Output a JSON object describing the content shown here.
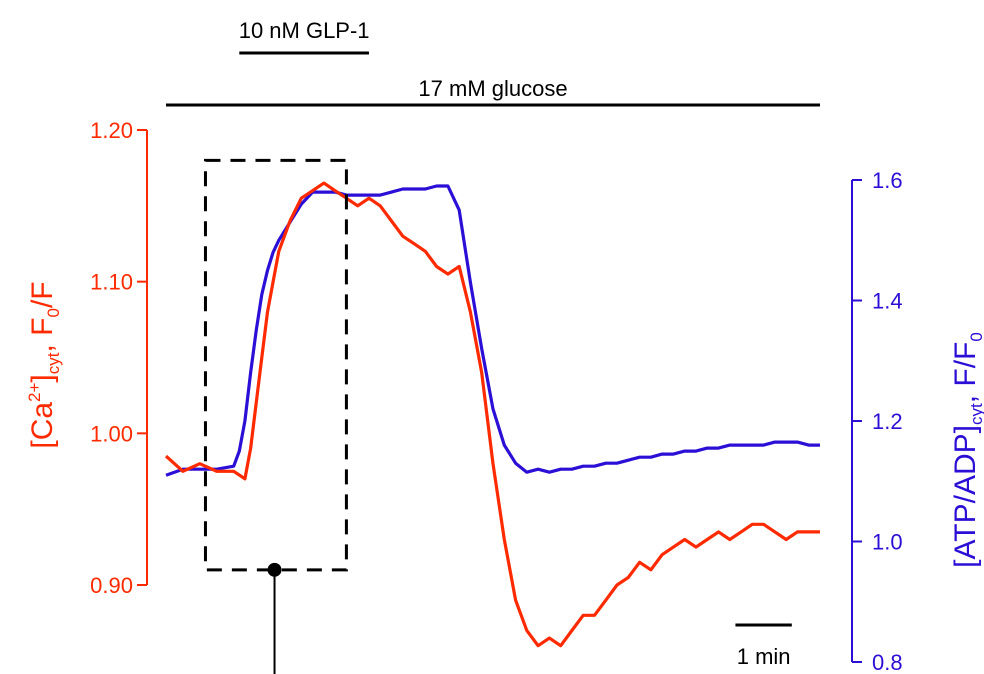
{
  "chart_data": {
    "type": "line",
    "title": "",
    "annotations": {
      "drug_label": "10 nM GLP-1",
      "glucose_label": "17 mM glucose",
      "scale_bar_label": "1 min"
    },
    "axes": {
      "left": {
        "label_parts": [
          "[Ca",
          "2+",
          "]",
          "cyt",
          ", F",
          "0",
          "/F"
        ],
        "color": "#ff2a00",
        "ylim": [
          0.9,
          1.2
        ],
        "ticks": [
          "0.90",
          "1.00",
          "1.10",
          "1.20"
        ]
      },
      "right": {
        "label_parts": [
          "[ATP/ADP]",
          "cyt",
          ", F/F",
          "0"
        ],
        "color": "#2b0fd6",
        "ylim": [
          0.8,
          1.6
        ],
        "ticks": [
          "0.8",
          "1.0",
          "1.2",
          "1.4",
          "1.6"
        ]
      }
    },
    "x_unit": "min",
    "xlim": [
      0,
      11.6
    ],
    "series": [
      {
        "axis": "left",
        "color": "#ff2a00",
        "x": [
          0,
          0.3,
          0.6,
          0.9,
          1.2,
          1.4,
          1.5,
          1.6,
          1.7,
          1.8,
          1.9,
          2.0,
          2.2,
          2.4,
          2.6,
          2.8,
          3.0,
          3.2,
          3.4,
          3.6,
          3.8,
          4.0,
          4.2,
          4.4,
          4.6,
          4.8,
          5.0,
          5.2,
          5.4,
          5.6,
          5.8,
          6.0,
          6.2,
          6.4,
          6.6,
          6.8,
          7.0,
          7.2,
          7.4,
          7.6,
          7.8,
          8.0,
          8.2,
          8.4,
          8.6,
          8.8,
          9.0,
          9.2,
          9.4,
          9.6,
          9.8,
          10.0,
          10.2,
          10.4,
          10.6,
          10.8,
          11.0,
          11.2,
          11.4,
          11.6
        ],
        "y": [
          0.985,
          0.975,
          0.98,
          0.975,
          0.975,
          0.97,
          0.99,
          1.02,
          1.05,
          1.08,
          1.1,
          1.12,
          1.14,
          1.155,
          1.16,
          1.165,
          1.16,
          1.155,
          1.15,
          1.155,
          1.15,
          1.14,
          1.13,
          1.125,
          1.12,
          1.11,
          1.105,
          1.11,
          1.08,
          1.04,
          0.98,
          0.93,
          0.89,
          0.87,
          0.86,
          0.865,
          0.86,
          0.87,
          0.88,
          0.88,
          0.89,
          0.9,
          0.905,
          0.915,
          0.91,
          0.92,
          0.925,
          0.93,
          0.925,
          0.93,
          0.935,
          0.93,
          0.935,
          0.94,
          0.94,
          0.935,
          0.93,
          0.935,
          0.935,
          0.935
        ]
      },
      {
        "axis": "right",
        "color": "#2b0fd6",
        "x": [
          0,
          0.3,
          0.6,
          0.9,
          1.2,
          1.3,
          1.4,
          1.5,
          1.6,
          1.7,
          1.8,
          1.9,
          2.0,
          2.2,
          2.4,
          2.6,
          2.8,
          3.0,
          3.2,
          3.4,
          3.6,
          3.8,
          4.0,
          4.2,
          4.4,
          4.6,
          4.8,
          5.0,
          5.2,
          5.4,
          5.6,
          5.8,
          6.0,
          6.2,
          6.4,
          6.6,
          6.8,
          7.0,
          7.2,
          7.4,
          7.6,
          7.8,
          8.0,
          8.2,
          8.4,
          8.6,
          8.8,
          9.0,
          9.2,
          9.4,
          9.6,
          9.8,
          10.0,
          10.2,
          10.4,
          10.6,
          10.8,
          11.0,
          11.2,
          11.4,
          11.6
        ],
        "y": [
          1.11,
          1.12,
          1.12,
          1.12,
          1.125,
          1.15,
          1.2,
          1.28,
          1.35,
          1.41,
          1.45,
          1.48,
          1.5,
          1.53,
          1.56,
          1.58,
          1.58,
          1.58,
          1.575,
          1.575,
          1.575,
          1.575,
          1.58,
          1.585,
          1.585,
          1.585,
          1.59,
          1.59,
          1.55,
          1.43,
          1.32,
          1.22,
          1.16,
          1.13,
          1.115,
          1.12,
          1.115,
          1.12,
          1.12,
          1.125,
          1.125,
          1.13,
          1.13,
          1.135,
          1.14,
          1.14,
          1.145,
          1.145,
          1.15,
          1.15,
          1.155,
          1.155,
          1.16,
          1.16,
          1.16,
          1.16,
          1.165,
          1.165,
          1.165,
          1.16,
          1.16
        ]
      }
    ],
    "bars": {
      "drug_x": [
        1.3,
        3.6
      ],
      "glucose_x": [
        0,
        11.6
      ],
      "scale_bar_x": [
        10.1,
        11.1
      ]
    },
    "highlight_box": {
      "x": [
        0.7,
        3.2
      ],
      "y_left": [
        0.91,
        1.18
      ]
    }
  }
}
